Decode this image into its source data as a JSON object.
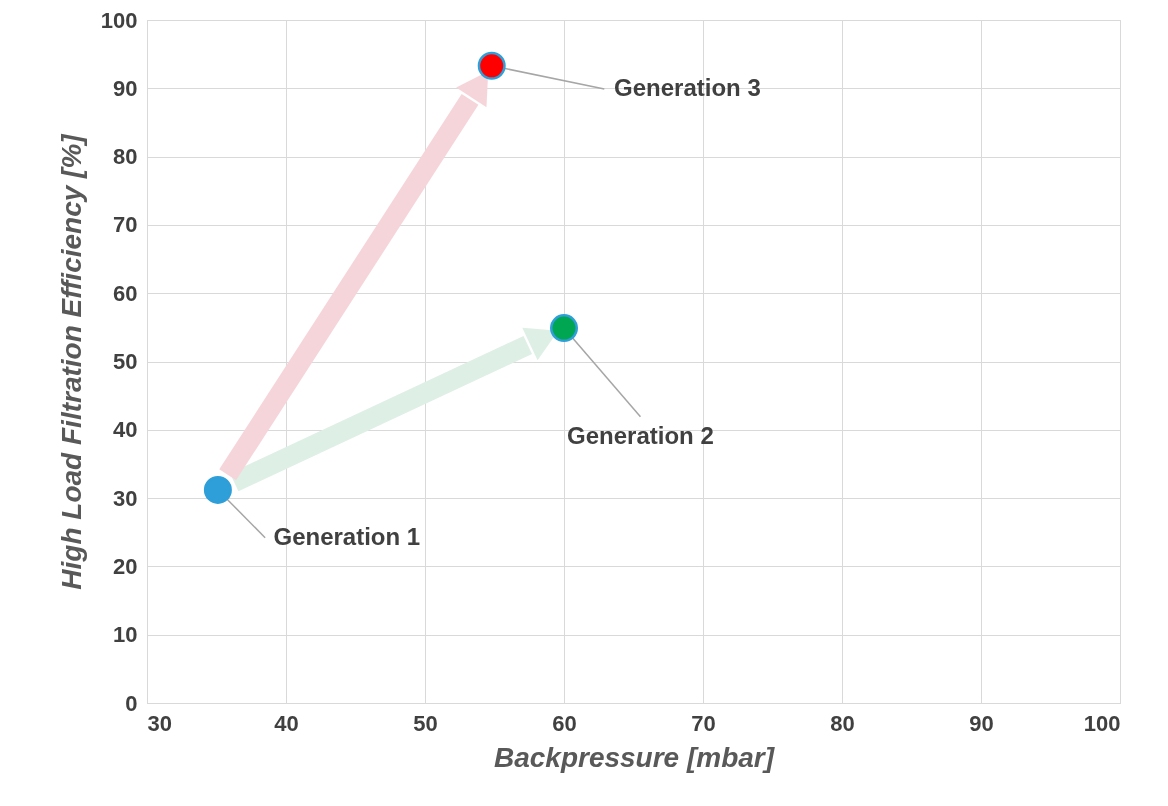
{
  "chart_data": {
    "type": "scatter",
    "xlabel": "Backpressure [mbar]",
    "ylabel": "High Load Filtration Efficiency [%]",
    "series": [
      {
        "x": [
          35.1,
          60,
          54.8
        ],
        "values": [
          31.2,
          54.9,
          93.3
        ],
        "colors": [
          "#2e9fd8",
          "#00a651",
          "#ff0000"
        ]
      }
    ],
    "annotations": [
      {
        "text": "Generation 1",
        "x": 35.1,
        "y": 31.2
      },
      {
        "text": "Generation 2",
        "x": 60,
        "y": 54.9
      },
      {
        "text": "Generation 3",
        "x": 54.8,
        "y": 93.3
      }
    ],
    "xlim": [
      30,
      100
    ],
    "xticks": [
      30,
      40,
      50,
      60,
      70,
      80,
      90,
      100
    ],
    "ylim": [
      0,
      100
    ],
    "yticks": [
      0,
      10,
      20,
      30,
      40,
      50,
      60,
      70,
      80,
      90,
      100
    ],
    "grid": true,
    "legend": false,
    "marker": "circle"
  }
}
